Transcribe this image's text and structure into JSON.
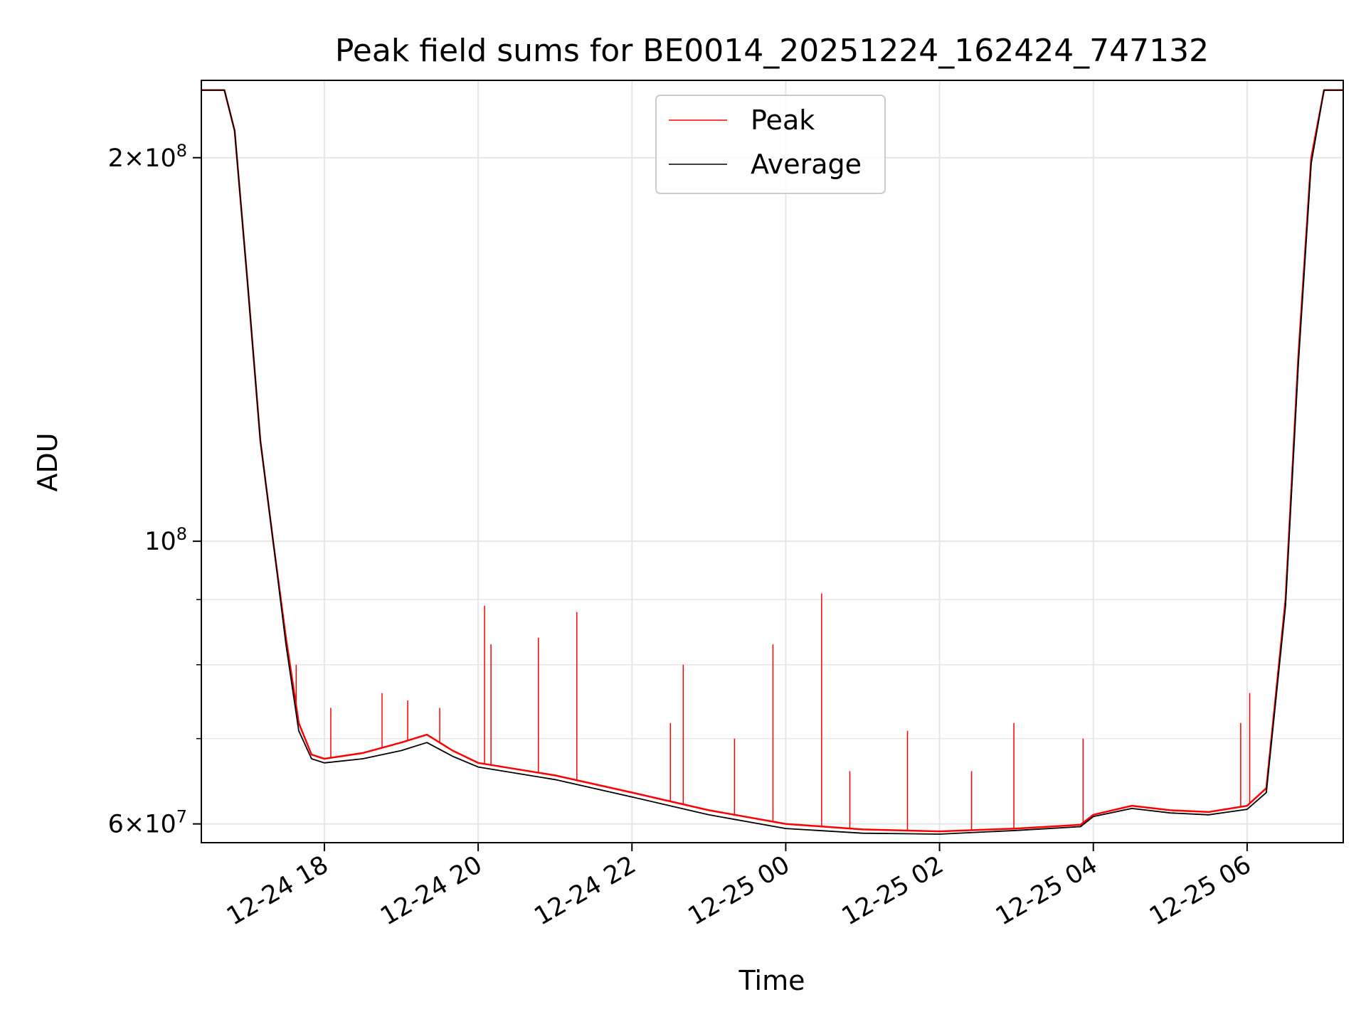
{
  "chart_data": {
    "type": "line",
    "title": "Peak field sums for BE0014_20251224_162424_747132",
    "xlabel": "Time",
    "ylabel": "ADU",
    "x_range": [
      "2025-12-24 16:24",
      "2025-12-25 07:15"
    ],
    "ylim": [
      58000000,
      230000000
    ],
    "y_scale": "log",
    "grid": true,
    "legend_position": "top-center",
    "x_ticks": [
      {
        "value": "2025-12-24 18:00",
        "label": "12-24 18"
      },
      {
        "value": "2025-12-24 20:00",
        "label": "12-24 20"
      },
      {
        "value": "2025-12-24 22:00",
        "label": "12-24 22"
      },
      {
        "value": "2025-12-25 00:00",
        "label": "12-25 00"
      },
      {
        "value": "2025-12-25 02:00",
        "label": "12-25 02"
      },
      {
        "value": "2025-12-25 04:00",
        "label": "12-25 04"
      },
      {
        "value": "2025-12-25 06:00",
        "label": "12-25 06"
      }
    ],
    "y_ticks": [
      {
        "value": 60000000,
        "mant": "6",
        "exp": "7"
      },
      {
        "value": 100000000,
        "mant": "",
        "exp": "8"
      },
      {
        "value": 200000000,
        "mant": "2",
        "exp": "8"
      }
    ],
    "y_minor_grid": [
      70000000,
      80000000,
      90000000
    ],
    "series": [
      {
        "name": "Peak",
        "color": "#ff0000",
        "points": [
          [
            "2025-12-24 16:24",
            226000000
          ],
          [
            "2025-12-24 16:42",
            226000000
          ],
          [
            "2025-12-24 16:50",
            210000000
          ],
          [
            "2025-12-24 17:00",
            160000000
          ],
          [
            "2025-12-24 17:10",
            120000000
          ],
          [
            "2025-12-24 17:20",
            100000000
          ],
          [
            "2025-12-24 17:30",
            84000000
          ],
          [
            "2025-12-24 17:40",
            72000000
          ],
          [
            "2025-12-24 17:50",
            68000000
          ],
          [
            "2025-12-24 18:00",
            67500000
          ],
          [
            "2025-12-24 18:30",
            68200000
          ],
          [
            "2025-12-24 19:00",
            69500000
          ],
          [
            "2025-12-24 19:20",
            70500000
          ],
          [
            "2025-12-24 19:40",
            68500000
          ],
          [
            "2025-12-24 20:00",
            67000000
          ],
          [
            "2025-12-24 21:00",
            65500000
          ],
          [
            "2025-12-24 22:00",
            63500000
          ],
          [
            "2025-12-24 23:00",
            61500000
          ],
          [
            "2025-12-25 00:00",
            60000000
          ],
          [
            "2025-12-25 01:00",
            59400000
          ],
          [
            "2025-12-25 02:00",
            59200000
          ],
          [
            "2025-12-25 03:00",
            59500000
          ],
          [
            "2025-12-25 03:50",
            59900000
          ],
          [
            "2025-12-25 04:00",
            61000000
          ],
          [
            "2025-12-25 04:30",
            62000000
          ],
          [
            "2025-12-25 05:00",
            61500000
          ],
          [
            "2025-12-25 05:30",
            61300000
          ],
          [
            "2025-12-25 06:00",
            62000000
          ],
          [
            "2025-12-25 06:15",
            64000000
          ],
          [
            "2025-12-25 06:30",
            90000000
          ],
          [
            "2025-12-25 06:40",
            140000000
          ],
          [
            "2025-12-25 06:50",
            200000000
          ],
          [
            "2025-12-25 07:00",
            226000000
          ],
          [
            "2025-12-25 07:15",
            226000000
          ]
        ],
        "spikes": [
          [
            "2025-12-24 20:05",
            89000000
          ],
          [
            "2025-12-24 20:10",
            83000000
          ],
          [
            "2025-12-24 20:47",
            84000000
          ],
          [
            "2025-12-24 21:17",
            88000000
          ],
          [
            "2025-12-24 22:40",
            80000000
          ],
          [
            "2025-12-24 23:50",
            83000000
          ],
          [
            "2025-12-25 00:28",
            91000000
          ],
          [
            "2025-12-25 01:35",
            71000000
          ],
          [
            "2025-12-25 02:58",
            72000000
          ],
          [
            "2025-12-25 03:52",
            70000000
          ],
          [
            "2025-12-25 05:55",
            72000000
          ],
          [
            "2025-12-25 06:02",
            76000000
          ],
          [
            "2025-12-24 17:38",
            80000000
          ],
          [
            "2025-12-24 18:05",
            74000000
          ],
          [
            "2025-12-24 18:45",
            76000000
          ],
          [
            "2025-12-24 19:05",
            75000000
          ],
          [
            "2025-12-24 19:30",
            74000000
          ],
          [
            "2025-12-24 22:30",
            72000000
          ],
          [
            "2025-12-24 23:20",
            70000000
          ],
          [
            "2025-12-25 00:50",
            66000000
          ],
          [
            "2025-12-25 02:25",
            66000000
          ]
        ]
      },
      {
        "name": "Average",
        "color": "#000000",
        "points": [
          [
            "2025-12-24 16:24",
            226000000
          ],
          [
            "2025-12-24 16:42",
            226000000
          ],
          [
            "2025-12-24 16:50",
            210000000
          ],
          [
            "2025-12-24 17:00",
            160000000
          ],
          [
            "2025-12-24 17:10",
            120000000
          ],
          [
            "2025-12-24 17:20",
            100000000
          ],
          [
            "2025-12-24 17:30",
            83000000
          ],
          [
            "2025-12-24 17:40",
            71000000
          ],
          [
            "2025-12-24 17:50",
            67500000
          ],
          [
            "2025-12-24 18:00",
            67000000
          ],
          [
            "2025-12-24 18:30",
            67500000
          ],
          [
            "2025-12-24 19:00",
            68500000
          ],
          [
            "2025-12-24 19:20",
            69500000
          ],
          [
            "2025-12-24 19:40",
            67800000
          ],
          [
            "2025-12-24 20:00",
            66500000
          ],
          [
            "2025-12-24 21:00",
            65000000
          ],
          [
            "2025-12-24 22:00",
            63000000
          ],
          [
            "2025-12-24 23:00",
            61000000
          ],
          [
            "2025-12-25 00:00",
            59500000
          ],
          [
            "2025-12-25 01:00",
            59000000
          ],
          [
            "2025-12-25 02:00",
            58900000
          ],
          [
            "2025-12-25 03:00",
            59300000
          ],
          [
            "2025-12-25 03:50",
            59700000
          ],
          [
            "2025-12-25 04:00",
            60800000
          ],
          [
            "2025-12-25 04:30",
            61700000
          ],
          [
            "2025-12-25 05:00",
            61200000
          ],
          [
            "2025-12-25 05:30",
            61000000
          ],
          [
            "2025-12-25 06:00",
            61600000
          ],
          [
            "2025-12-25 06:15",
            63500000
          ],
          [
            "2025-12-25 06:30",
            89000000
          ],
          [
            "2025-12-25 06:40",
            138000000
          ],
          [
            "2025-12-25 06:50",
            198000000
          ],
          [
            "2025-12-25 07:00",
            226000000
          ],
          [
            "2025-12-25 07:15",
            226000000
          ]
        ]
      }
    ]
  }
}
